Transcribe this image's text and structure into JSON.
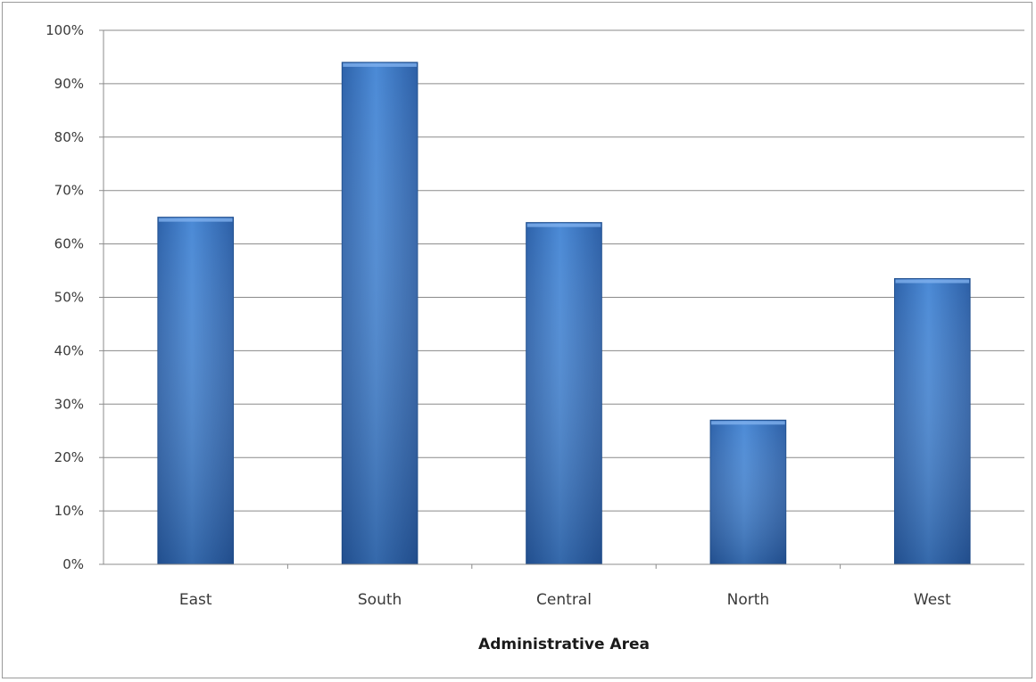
{
  "chart_data": {
    "type": "bar",
    "categories": [
      "East",
      "South",
      "Central",
      "North",
      "West"
    ],
    "values": [
      0.65,
      0.94,
      0.64,
      0.27,
      0.535
    ],
    "title": "",
    "xlabel": "Administrative Area",
    "ylabel": "",
    "ylim": [
      0,
      1
    ],
    "yticks": [
      "0%",
      "10%",
      "20%",
      "30%",
      "40%",
      "50%",
      "60%",
      "70%",
      "80%",
      "90%",
      "100%"
    ],
    "grid": true,
    "legend": "none",
    "bar_color": "#3f7fce",
    "bar_color_dark": "#2a5a9e"
  }
}
